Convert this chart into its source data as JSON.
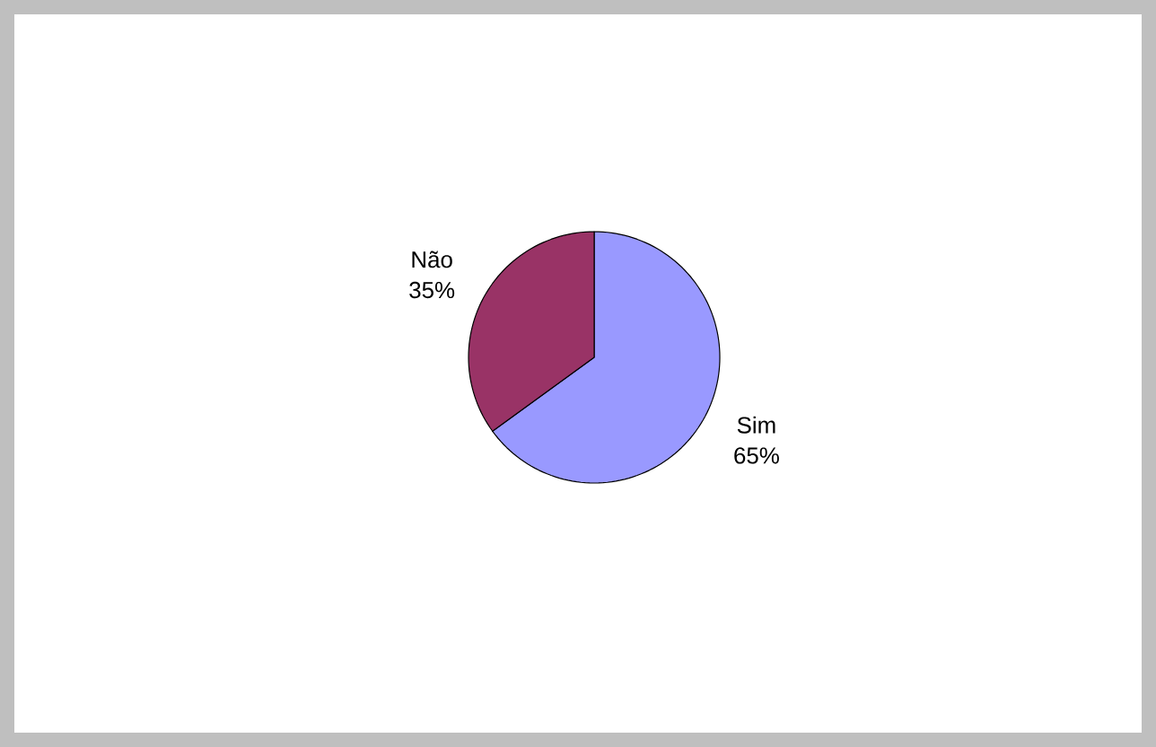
{
  "chart_data": {
    "type": "pie",
    "categories": [
      "Sim",
      "Não"
    ],
    "values": [
      65,
      35
    ],
    "colors": [
      "#9999ff",
      "#993366"
    ],
    "value_labels": [
      "65%",
      "35%"
    ]
  }
}
